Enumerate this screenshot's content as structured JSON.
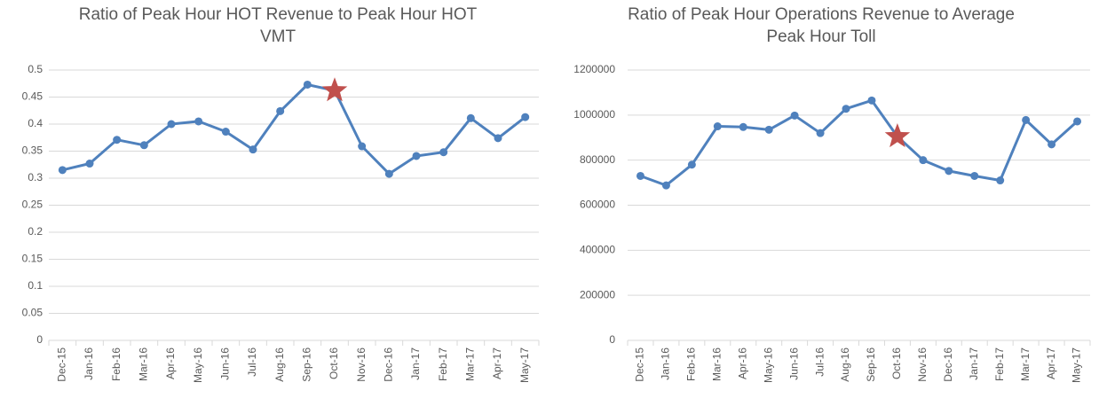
{
  "chart_data": [
    {
      "type": "line",
      "title": "Ratio of Peak Hour HOT Revenue to Peak Hour HOT VMT",
      "categories": [
        "Dec-15",
        "Jan-16",
        "Feb-16",
        "Mar-16",
        "Apr-16",
        "May-16",
        "Jun-16",
        "Jul-16",
        "Aug-16",
        "Sep-16",
        "Oct-16",
        "Nov-16",
        "Dec-16",
        "Jan-17",
        "Feb-17",
        "Mar-17",
        "Apr-17",
        "May-17"
      ],
      "values": [
        0.315,
        0.327,
        0.371,
        0.361,
        0.4,
        0.405,
        0.386,
        0.353,
        0.424,
        0.473,
        0.462,
        0.359,
        0.308,
        0.341,
        0.348,
        0.411,
        0.374,
        0.413
      ],
      "color": "#4f81bd",
      "highlight_point": 10,
      "highlight_color": "#c0504d",
      "ylim": [
        0,
        0.5
      ],
      "yticks": [
        0,
        0.05,
        0.1,
        0.15,
        0.2,
        0.25,
        0.3,
        0.35,
        0.4,
        0.45,
        0.5
      ],
      "grid": true
    },
    {
      "type": "line",
      "title": "Ratio of Peak Hour Operations Revenue to Average Peak Hour Toll",
      "categories": [
        "Dec-15",
        "Jan-16",
        "Feb-16",
        "Mar-16",
        "Apr-16",
        "May-16",
        "Jun-16",
        "Jul-16",
        "Aug-16",
        "Sep-16",
        "Oct-16",
        "Nov-16",
        "Dec-16",
        "Jan-17",
        "Feb-17",
        "Mar-17",
        "Apr-17",
        "May-17"
      ],
      "values": [
        730000,
        688000,
        780000,
        950000,
        947000,
        935000,
        998000,
        920000,
        1028000,
        1065000,
        905000,
        800000,
        752000,
        730000,
        710000,
        978000,
        870000,
        972000
      ],
      "color": "#4f81bd",
      "highlight_point": 10,
      "highlight_color": "#c0504d",
      "ylim": [
        0,
        1200000
      ],
      "yticks": [
        0,
        200000,
        400000,
        600000,
        800000,
        1000000,
        1200000
      ],
      "grid": true
    }
  ]
}
